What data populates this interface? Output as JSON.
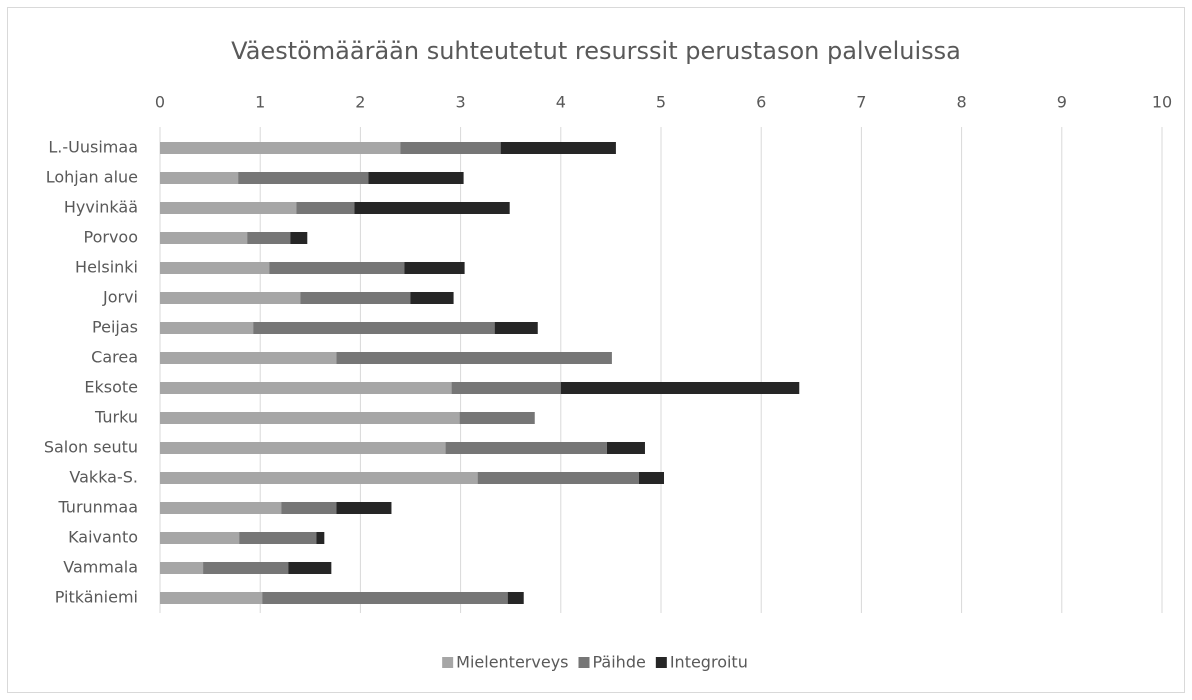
{
  "chart_data": {
    "type": "stacked_bar_horizontal",
    "title": "Väestömäärään suhteutetut resurssit perustason palveluissa",
    "categories": [
      "L.-Uusimaa",
      "Lohjan alue",
      "Hyvinkää",
      "Porvoo",
      "Helsinki",
      "Jorvi",
      "Peijas",
      "Carea",
      "Eksote",
      "Turku",
      "Salon seutu",
      "Vakka-S.",
      "Turunmaa",
      "Kaivanto",
      "Vammala",
      "Pitkäniemi"
    ],
    "series": [
      {
        "name": "Mielenterveys",
        "color": "#a6a6a6",
        "values": [
          2.4,
          0.78,
          1.36,
          0.87,
          1.09,
          1.4,
          0.93,
          1.76,
          2.91,
          2.99,
          2.85,
          3.17,
          1.21,
          0.79,
          0.43,
          1.02
        ]
      },
      {
        "name": "Päihde",
        "color": "#767676",
        "values": [
          1.0,
          1.3,
          0.58,
          0.43,
          1.35,
          1.1,
          2.41,
          2.75,
          1.09,
          0.75,
          1.61,
          1.61,
          0.55,
          0.77,
          0.85,
          2.45
        ]
      },
      {
        "name": "Integroitu",
        "color": "#262626",
        "values": [
          1.15,
          0.95,
          1.55,
          0.17,
          0.6,
          0.43,
          0.43,
          0,
          2.38,
          0,
          0.38,
          0.25,
          0.55,
          0.08,
          0.43,
          0.16
        ]
      }
    ],
    "xlim": [
      0,
      10
    ],
    "xticks": [
      0,
      1,
      2,
      3,
      4,
      5,
      6,
      7,
      8,
      9,
      10
    ],
    "grid": true,
    "legend": "bottom"
  }
}
